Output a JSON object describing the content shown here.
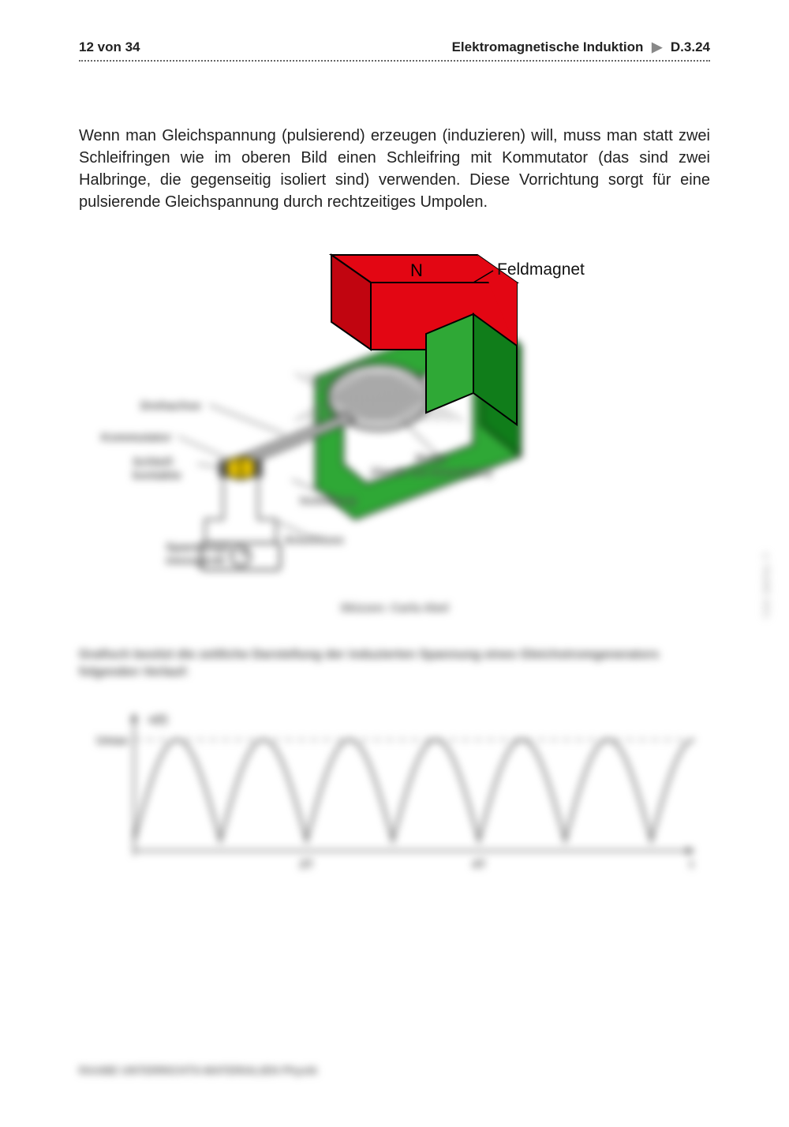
{
  "header": {
    "page_left": "12 von 34",
    "title": "Elektromagnetische Induktion",
    "arrow": "▶",
    "code": "D.3.24"
  },
  "body": {
    "paragraph": "Wenn man Gleichspannung (pulsierend) erzeugen (induzieren) will, muss man statt zwei Schleifringen wie im oberen Bild einen Schleifring mit Kommutator (das sind zwei Halbringe, die gegenseitig isoliert sind) verwenden. Diese Vorrichtung sorgt für eine pulsierende Gleichspannung durch rechtzeitiges Umpolen."
  },
  "diagram": {
    "labels": {
      "feldmagnet": "Feldmagnet",
      "n_pole": "N",
      "drehachse": "Drehachse",
      "kommutator": "Kommutator",
      "schleifkontakte": "Schleif-\nkontakte",
      "rotor": "Rotor\n(Spule mit Eisenkern)",
      "isolierung": "Isolierung",
      "anschluss": "Anschluss",
      "spannungsmessgeraet": "Spannungs-\nmessgerät"
    },
    "caption": "Skizzen: Carla Abel",
    "colors": {
      "magnet_top": "#e30613",
      "magnet_bottom": "#2fa836",
      "magnet_bottom_face": "#107d1a",
      "rotor_body": "#d0d0d0",
      "rotor_hatch": "#666666",
      "axis": "#b0b0b0",
      "commutator": "#e6c200",
      "wire": "#333333",
      "outline": "#000000"
    }
  },
  "paragraph2": "Grafisch besitzt die zeitliche Darstellung der induzierten Spannung eines Gleichstromgenerators folgenden Verlauf:",
  "chart": {
    "type": "line",
    "ylabel_top": "u(t)",
    "ylabel_peak": "Umax",
    "xlabel": "t",
    "xlim": [
      0,
      6.5
    ],
    "ylim": [
      -0.1,
      1.15
    ],
    "periods": 6.5,
    "points_per_period": 40,
    "line_color": "#666666",
    "line_width": 3,
    "axis_color": "#555555",
    "dash_color": "#888888",
    "background": "#ffffff",
    "tick_labels": [
      "",
      "",
      "2T",
      "",
      "4T",
      "",
      ""
    ]
  },
  "footer": "RAABE UNTERRICHTS-MATERIALIEN Physik",
  "side_credit": "© RAABE 2021"
}
